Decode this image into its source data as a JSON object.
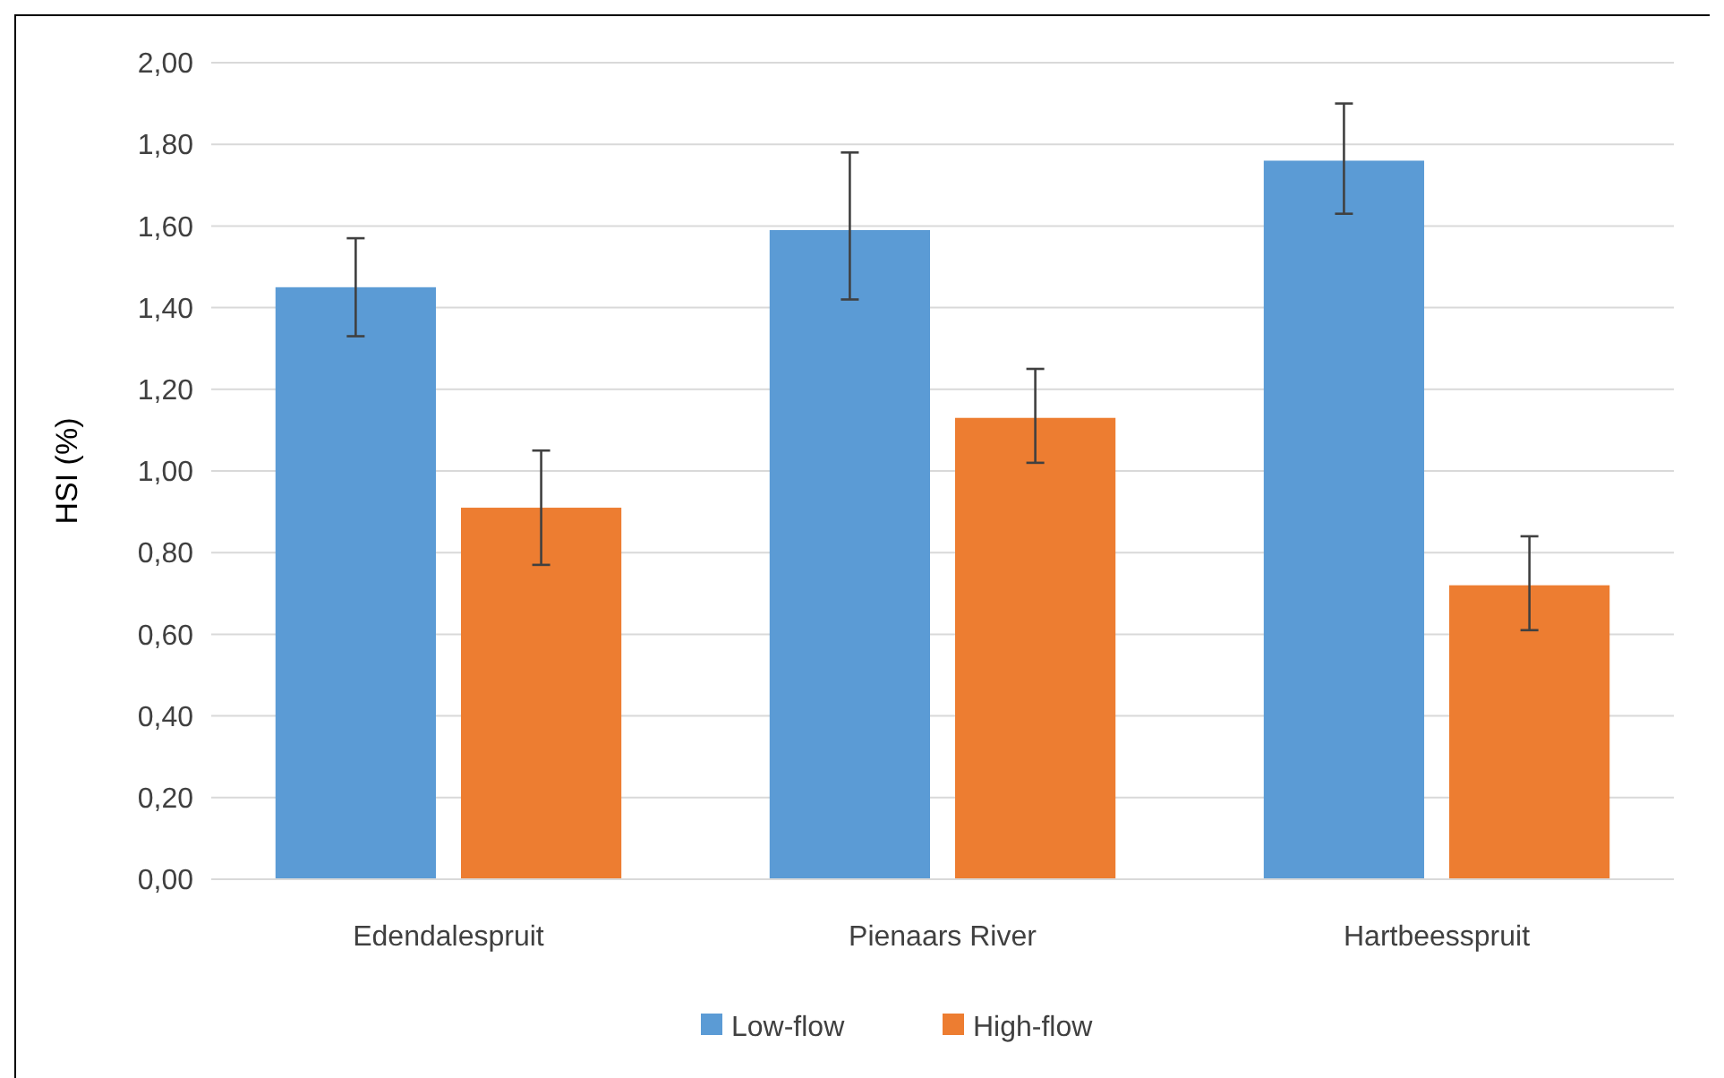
{
  "chart_data": {
    "type": "bar",
    "ylabel": "HSI (%)",
    "categories": [
      "Edendalespruit",
      "Pienaars River",
      "Hartbeesspruit"
    ],
    "series": [
      {
        "name": "Low-flow",
        "color": "#5b9bd5",
        "values": [
          1.45,
          1.59,
          1.76
        ],
        "errors": [
          [
            1.33,
            1.57
          ],
          [
            1.42,
            1.78
          ],
          [
            1.63,
            1.9
          ]
        ]
      },
      {
        "name": "High-flow",
        "color": "#ed7d31",
        "values": [
          0.91,
          1.13,
          0.72
        ],
        "errors": [
          [
            0.77,
            1.05
          ],
          [
            1.02,
            1.25
          ],
          [
            0.61,
            0.84
          ]
        ]
      }
    ],
    "ylim": [
      0,
      2
    ],
    "yticks": [
      {
        "value": 0,
        "label": "0,00"
      },
      {
        "value": 0.2,
        "label": "0,20"
      },
      {
        "value": 0.4,
        "label": "0,40"
      },
      {
        "value": 0.6,
        "label": "0,60"
      },
      {
        "value": 0.8,
        "label": "0,80"
      },
      {
        "value": 1,
        "label": "1,00"
      },
      {
        "value": 1.2,
        "label": "1,20"
      },
      {
        "value": 1.4,
        "label": "1,40"
      },
      {
        "value": 1.6,
        "label": "1,60"
      },
      {
        "value": 1.8,
        "label": "1,80"
      },
      {
        "value": 2,
        "label": "2,00"
      }
    ],
    "grid": "y",
    "legend": "bottom"
  }
}
